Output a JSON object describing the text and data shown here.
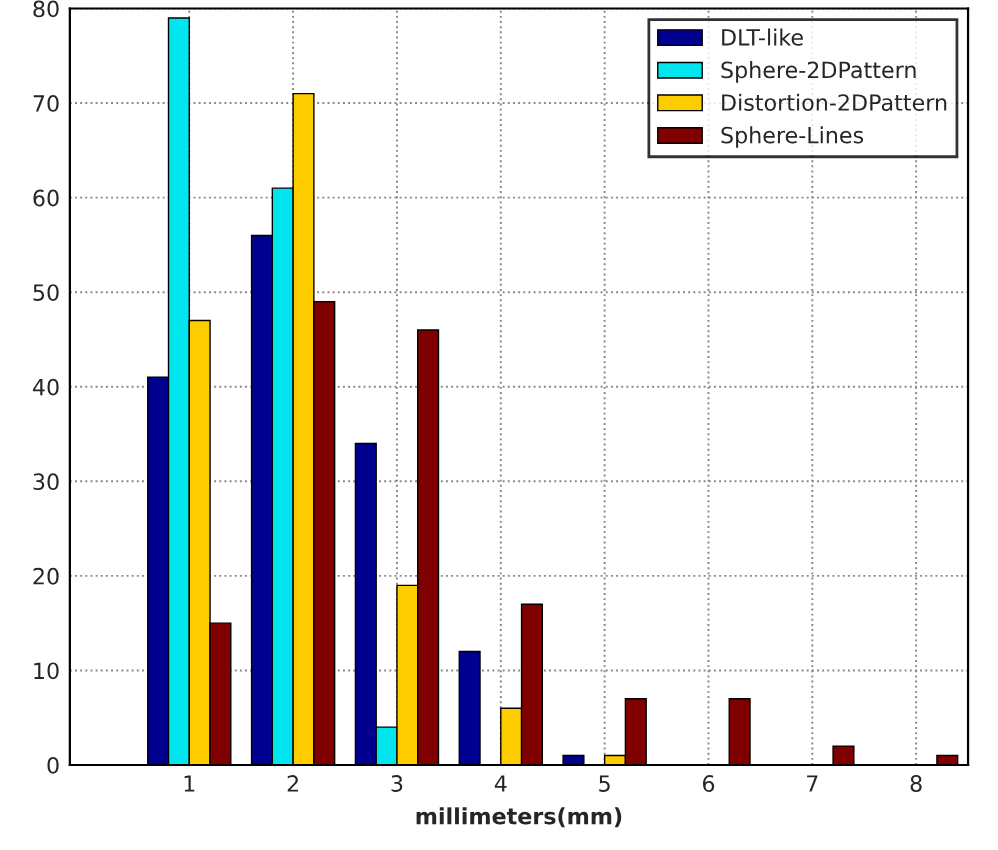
{
  "chart_data": {
    "type": "bar",
    "xlabel": "millimeters(mm)",
    "x": [
      1,
      2,
      3,
      4,
      5,
      6,
      7,
      8
    ],
    "series": [
      {
        "name": "DLT-like",
        "color": "#00008f",
        "values": [
          41,
          56,
          34,
          12,
          1,
          0,
          0,
          0
        ]
      },
      {
        "name": "Sphere-2DPattern",
        "color": "#00e5ee",
        "values": [
          79,
          61,
          4,
          0,
          0,
          0,
          0,
          0
        ]
      },
      {
        "name": "Distortion-2DPattern",
        "color": "#ffcc00",
        "values": [
          47,
          71,
          19,
          6,
          1,
          0,
          0,
          0
        ]
      },
      {
        "name": "Sphere-Lines",
        "color": "#800000",
        "values": [
          15,
          49,
          46,
          17,
          7,
          7,
          2,
          1
        ]
      }
    ],
    "xlim": [
      -0.15,
      8.5
    ],
    "xticks": [
      1,
      2,
      3,
      4,
      5,
      6,
      7,
      8
    ],
    "ylim": [
      0,
      80
    ],
    "yticks": [
      0,
      10,
      20,
      30,
      40,
      50,
      60,
      70,
      80
    ],
    "grid": true,
    "legend": "top right"
  }
}
